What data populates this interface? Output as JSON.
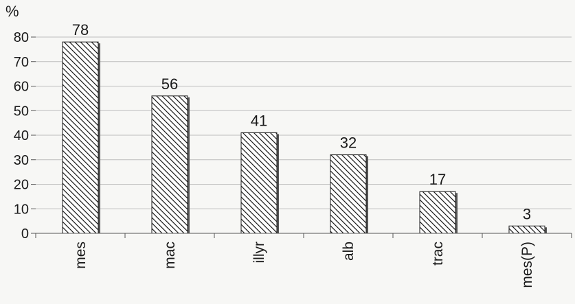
{
  "chart_data": {
    "type": "bar",
    "ylabel": "%",
    "categories": [
      "mes",
      "mac",
      "illyr",
      "alb",
      "trac",
      "mes(P)"
    ],
    "values": [
      78,
      56,
      41,
      32,
      17,
      3
    ],
    "ylim": [
      0,
      80
    ],
    "yticks": [
      0,
      10,
      20,
      30,
      40,
      50,
      60,
      70,
      80
    ],
    "grid": true,
    "bar_pattern": "diagonal-hatch",
    "colors": {
      "bar_fill": "#ffffff",
      "hatch": "#1a1a1a",
      "grid": "#bdbdbd",
      "axis": "#555555"
    }
  }
}
